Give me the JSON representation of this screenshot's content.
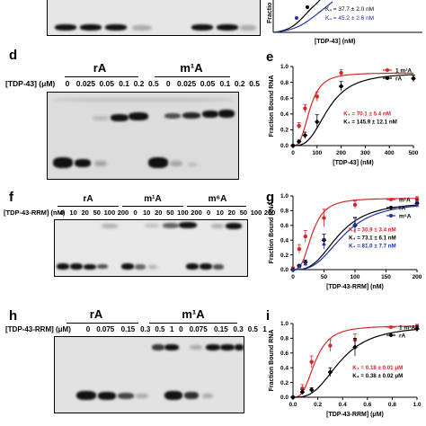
{
  "panels": {
    "c_gel": {
      "note": ""
    },
    "c_chart": {
      "ylabel_fragment": "Fractio",
      "kd_lines": [
        "K₄ = 37.7 ± 2.0 nM",
        "K₄ = 45.2 ± 2.6 nM"
      ],
      "xlabel": "[TDP-43] (nM)",
      "colors": [
        "#000000",
        "#1f2fa8"
      ]
    },
    "d": {
      "label": "d",
      "lane_param": "[TDP-43] (μM)",
      "groups": [
        {
          "name": "rA",
          "concs": [
            "0",
            "0.025",
            "0.05",
            "0.1",
            "0.2",
            "0.5"
          ]
        },
        {
          "name": "m¹A",
          "concs": [
            "0",
            "0.025",
            "0.05",
            "0.1",
            "0.2",
            "0.5"
          ]
        }
      ]
    },
    "e": {
      "label": "e",
      "ylabel": "Fraction Bound RNA",
      "xlabel": "[TDP-43] (nM)",
      "legend": [
        {
          "name": "1 m¹A",
          "color": "#d62728"
        },
        {
          "name": "rA",
          "color": "#000000"
        }
      ],
      "kd": [
        {
          "text": "K₄ = 70.1 ± 5.4 nM",
          "color": "#d62728"
        },
        {
          "text": "K₄ = 145.9 ± 12.1 nM",
          "color": "#000000"
        }
      ],
      "xticks": [
        "0",
        "100",
        "200",
        "300",
        "400",
        "500"
      ],
      "yticks": [
        "0.0",
        "0.2",
        "0.4",
        "0.6",
        "0.8",
        "1.0"
      ]
    },
    "f": {
      "label": "f",
      "lane_param": "[TDP-43-RRM] (nM)",
      "groups": [
        {
          "name": "rA",
          "concs": [
            "0",
            "10",
            "20",
            "50",
            "100",
            "200"
          ]
        },
        {
          "name": "m¹A",
          "concs": [
            "0",
            "10",
            "20",
            "50",
            "100",
            "200"
          ]
        },
        {
          "name": "m⁶A",
          "concs": [
            "0",
            "10",
            "20",
            "50",
            "100",
            "200"
          ]
        }
      ]
    },
    "g": {
      "label": "g",
      "ylabel": "Fraction Bound RNA",
      "xlabel": "[TDP-43-RRM] (nM)",
      "legend": [
        {
          "name": "m¹A",
          "color": "#d62728"
        },
        {
          "name": "rA",
          "color": "#000000"
        },
        {
          "name": "m⁶A",
          "color": "#1f2fa8"
        }
      ],
      "kd": [
        {
          "text": "K₄ = 30.9 ± 3.4 nM",
          "color": "#d62728"
        },
        {
          "text": "K₄ = 73.1 ± 6.1 nM",
          "color": "#000000"
        },
        {
          "text": "K₄ = 81.0 ± 7.7 nM",
          "color": "#1f2fa8"
        }
      ],
      "xticks": [
        "0",
        "50",
        "100",
        "150",
        "200"
      ],
      "yticks": [
        "0.0",
        "0.2",
        "0.4",
        "0.6",
        "0.8",
        "1.0"
      ]
    },
    "h": {
      "label": "h",
      "lane_param": "[TDP-43-RRM] (μM)",
      "groups": [
        {
          "name": "rA",
          "concs": [
            "0",
            "0.075",
            "0.15",
            "0.3",
            "0.5",
            "1"
          ]
        },
        {
          "name": "m¹A",
          "concs": [
            "0",
            "0.075",
            "0.15",
            "0.3",
            "0.5",
            "1"
          ]
        }
      ]
    },
    "i": {
      "label": "i",
      "ylabel": "Fraction Bound RNA",
      "xlabel": "[TDP-43-RRM] (μM)",
      "legend": [
        {
          "name": "1 m¹A",
          "color": "#d62728"
        },
        {
          "name": "rA",
          "color": "#000000"
        }
      ],
      "kd": [
        {
          "text": "K₄ = 0.18 ± 0.01 μM",
          "color": "#d62728"
        },
        {
          "text": "K₄ = 0.38 ± 0.02 μM",
          "color": "#000000"
        }
      ],
      "xticks": [
        "0.0",
        "0.2",
        "0.4",
        "0.6",
        "0.8",
        "1.0"
      ],
      "yticks": [
        "0.0",
        "0.2",
        "0.4",
        "0.6",
        "0.8",
        "1.0"
      ]
    }
  },
  "chart_data": [
    {
      "type": "scatter",
      "panel": "e",
      "xlabel": "[TDP-43] (nM)",
      "ylabel": "Fraction Bound RNA",
      "xlim": [
        0,
        500
      ],
      "ylim": [
        0,
        1.0
      ],
      "series": [
        {
          "name": "1 m¹A",
          "color": "#d62728",
          "kd": 70.1,
          "x": [
            0,
            25,
            50,
            100,
            200,
            500
          ],
          "y": [
            0.0,
            0.25,
            0.47,
            0.62,
            0.92,
            0.85
          ],
          "err": [
            0.01,
            0.04,
            0.05,
            0.06,
            0.04,
            0.04
          ]
        },
        {
          "name": "rA",
          "color": "#000000",
          "kd": 145.9,
          "x": [
            0,
            25,
            50,
            100,
            200,
            500
          ],
          "y": [
            0.0,
            0.05,
            0.13,
            0.3,
            0.75,
            0.85
          ],
          "err": [
            0.01,
            0.02,
            0.04,
            0.09,
            0.06,
            0.04
          ]
        }
      ]
    },
    {
      "type": "scatter",
      "panel": "g",
      "xlabel": "[TDP-43-RRM] (nM)",
      "ylabel": "Fraction Bound RNA",
      "xlim": [
        0,
        200
      ],
      "ylim": [
        0,
        1.0
      ],
      "series": [
        {
          "name": "m¹A",
          "color": "#d62728",
          "kd": 30.9,
          "x": [
            0,
            10,
            20,
            50,
            100,
            200
          ],
          "y": [
            0.02,
            0.28,
            0.45,
            0.7,
            0.88,
            0.96
          ],
          "err": [
            0.01,
            0.06,
            0.08,
            0.12,
            0.05,
            0.03
          ]
        },
        {
          "name": "rA",
          "color": "#000000",
          "kd": 73.1,
          "x": [
            0,
            10,
            20,
            50,
            100,
            200
          ],
          "y": [
            0.0,
            0.05,
            0.1,
            0.4,
            0.6,
            0.9
          ],
          "err": [
            0.01,
            0.02,
            0.03,
            0.08,
            0.1,
            0.04
          ]
        },
        {
          "name": "m⁶A",
          "color": "#1f2fa8",
          "kd": 81.0,
          "x": [
            0,
            10,
            20,
            50,
            100,
            200
          ],
          "y": [
            0.0,
            0.04,
            0.08,
            0.35,
            0.62,
            0.88
          ],
          "err": [
            0.01,
            0.02,
            0.03,
            0.07,
            0.09,
            0.04
          ]
        }
      ]
    },
    {
      "type": "scatter",
      "panel": "i",
      "xlabel": "[TDP-43-RRM] (μM)",
      "ylabel": "Fraction Bound RNA",
      "xlim": [
        0,
        1.0
      ],
      "ylim": [
        0,
        1.0
      ],
      "series": [
        {
          "name": "1 m¹A",
          "color": "#d62728",
          "kd": 0.18,
          "x": [
            0,
            0.075,
            0.15,
            0.3,
            0.5,
            1.0
          ],
          "y": [
            0.0,
            0.12,
            0.48,
            0.7,
            0.78,
            0.96
          ],
          "err": [
            0.01,
            0.05,
            0.08,
            0.08,
            0.08,
            0.03
          ]
        },
        {
          "name": "rA",
          "color": "#000000",
          "kd": 0.38,
          "x": [
            0,
            0.075,
            0.15,
            0.3,
            0.5,
            1.0
          ],
          "y": [
            0.0,
            0.07,
            0.1,
            0.34,
            0.68,
            0.93
          ],
          "err": [
            0.01,
            0.03,
            0.03,
            0.06,
            0.12,
            0.04
          ]
        }
      ]
    }
  ]
}
